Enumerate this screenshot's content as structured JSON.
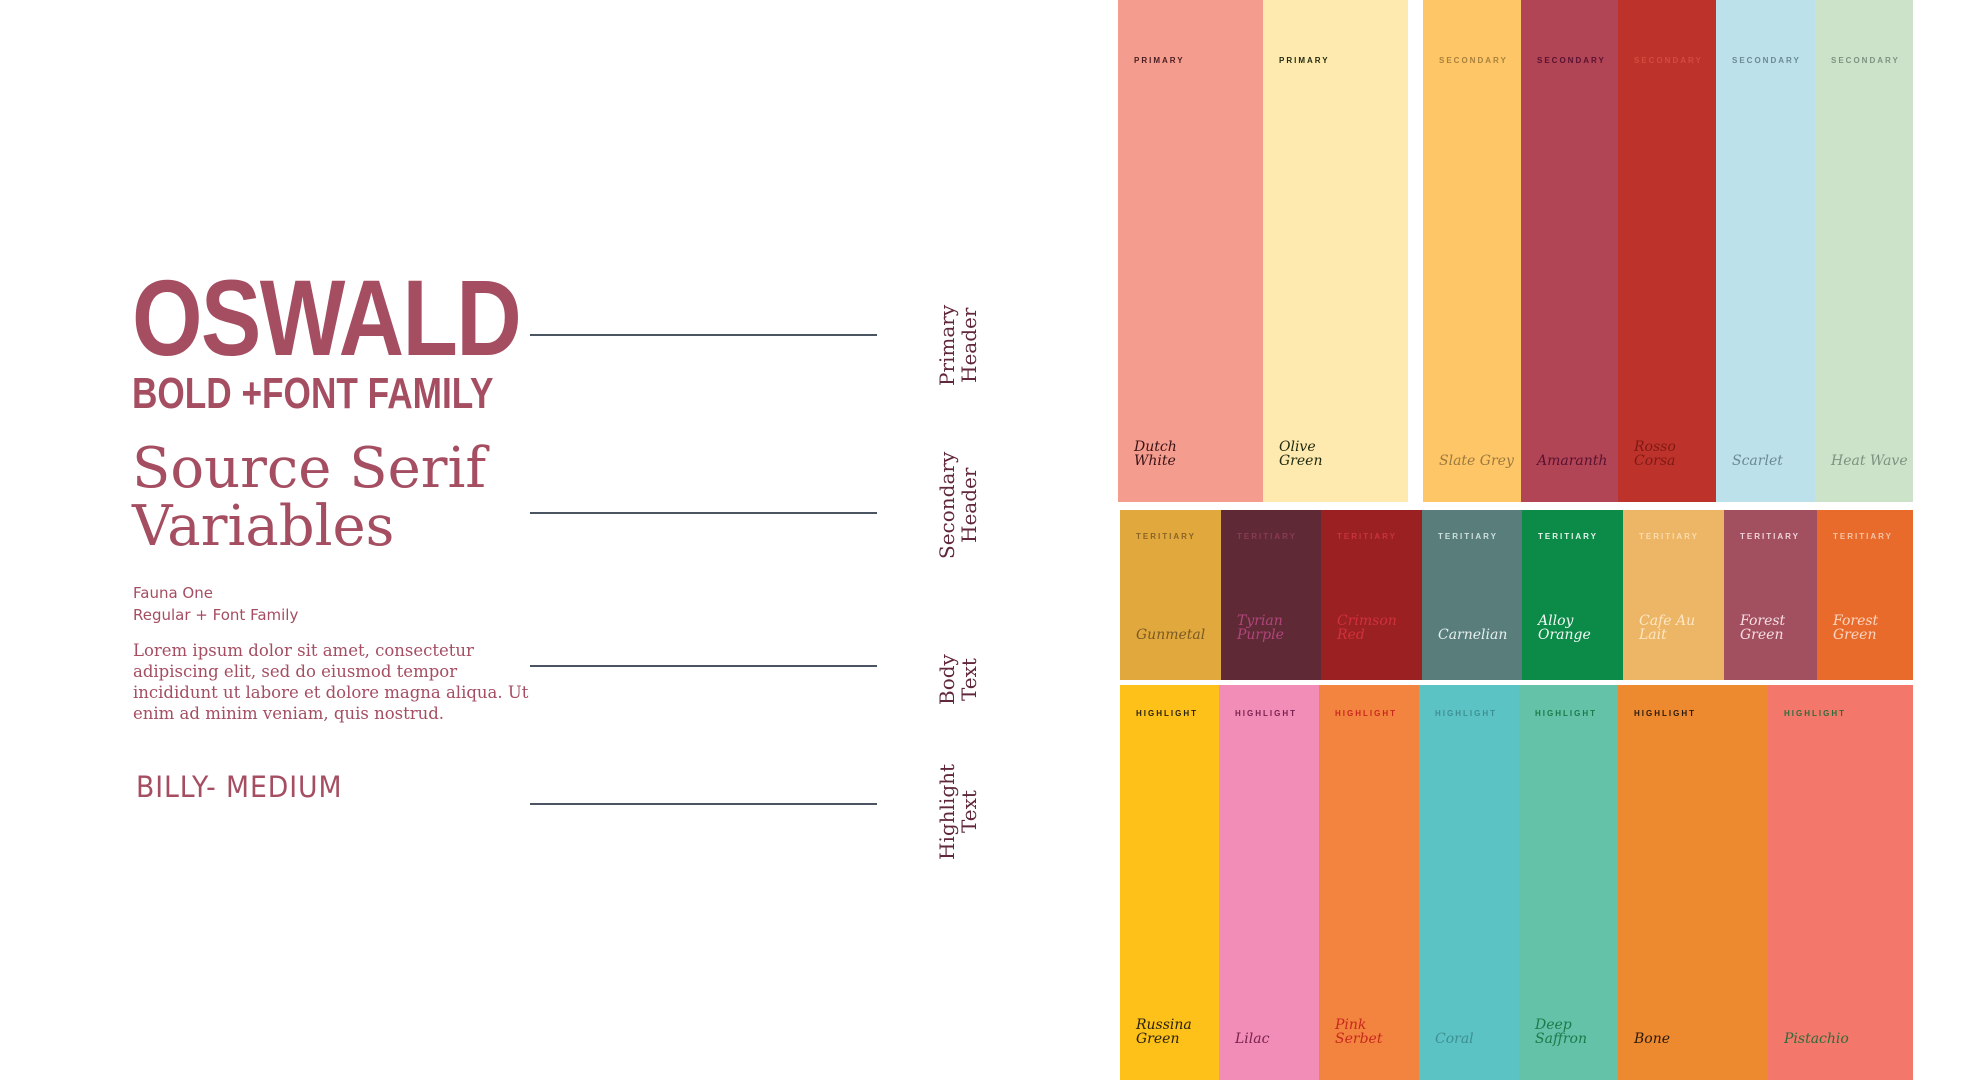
{
  "typography": {
    "oswald_title": "OSWALD",
    "oswald_sub": "BOLD +FONT FAMILY",
    "serif_line1": "Source Serif",
    "serif_line2": "Variables",
    "fauna_line1": "Fauna One",
    "fauna_line2": "Regular + Font Family",
    "lorem": "Lorem ipsum dolor sit amet, consectetur adipiscing elit, sed do eiusmod tempor incididunt ut labore et dolore magna aliqua. Ut enim ad minim veniam, quis nostrud.",
    "billy": "BILLY- MEDIUM"
  },
  "roles": {
    "primary_header": "Primary Header",
    "secondary_header": "Secondary Header",
    "body_text": "Body Text",
    "highlight_text": "Highlight Text"
  },
  "colors": {
    "font_accent": "#a54e62",
    "rule": "#4a5561",
    "role_label": "#60283a"
  },
  "palette": {
    "row1": [
      {
        "tier": "PRIMARY",
        "name": "Dutch White",
        "bg": "#f49c8e",
        "tier_color": "#4a1e22",
        "name_color": "#3a1518"
      },
      {
        "tier": "PRIMARY",
        "name": "Olive Green",
        "bg": "#feeaae",
        "tier_color": "#1f2a10",
        "name_color": "#1f2a10"
      },
      {
        "tier": "SECONDARY",
        "name": "Slate Grey",
        "bg": "#fec666",
        "tier_color": "#a8813c",
        "name_color": "#9c7a3e"
      },
      {
        "tier": "SECONDARY",
        "name": "Amaranth",
        "bg": "#b14455",
        "tier_color": "#5a1230",
        "name_color": "#5a1230"
      },
      {
        "tier": "SECONDARY",
        "name": "Rosso Corsa",
        "bg": "#bd332b",
        "tier_color": "#d64a3e",
        "name_color": "#7e1a14"
      },
      {
        "tier": "SECONDARY",
        "name": "Scarlet",
        "bg": "#bde1ea",
        "tier_color": "#6a8a92",
        "name_color": "#6a8a92"
      },
      {
        "tier": "SECONDARY",
        "name": "Heat Wave",
        "bg": "#cde3c9",
        "tier_color": "#7d9280",
        "name_color": "#7d9280"
      }
    ],
    "row2": [
      {
        "tier": "TERITIARY",
        "name": "Gunmetal",
        "bg": "#e1a83e",
        "tier_color": "#8a6425",
        "name_color": "#7a5a24"
      },
      {
        "tier": "TERITIARY",
        "name": "Tyrian Purple",
        "bg": "#5f2a36",
        "tier_color": "#8a3a55",
        "name_color": "#b0457a"
      },
      {
        "tier": "TERITIARY",
        "name": "Crimson Red",
        "bg": "#9a2022",
        "tier_color": "#c8343a",
        "name_color": "#d0323a"
      },
      {
        "tier": "TERITIARY",
        "name": "Carnelian",
        "bg": "#587d7b",
        "tier_color": "#cfe0df",
        "name_color": "#e6efee"
      },
      {
        "tier": "TERITIARY",
        "name": "Alloy Orange",
        "bg": "#0b8a48",
        "tier_color": "#e6f5ec",
        "name_color": "#f2faf5"
      },
      {
        "tier": "TERITIARY",
        "name": "Cafe Au Lait",
        "bg": "#edb566",
        "tier_color": "#fbdcae",
        "name_color": "#fde7c4"
      },
      {
        "tier": "TERITIARY",
        "name": "Forest Green",
        "bg": "#a24f60",
        "tier_color": "#f0d3da",
        "name_color": "#f5dde3"
      },
      {
        "tier": "TERITIARY",
        "name": "Forest Green",
        "bg": "#e86b2c",
        "tier_color": "#f7c4a6",
        "name_color": "#fbd6c0"
      }
    ],
    "row3": [
      {
        "tier": "HIGHLIGHT",
        "name": "Russina Green",
        "bg": "#fdc11a",
        "tier_color": "#2a2210",
        "name_color": "#2a2210"
      },
      {
        "tier": "HIGHLIGHT",
        "name": "Lilac",
        "bg": "#f18db7",
        "tier_color": "#7a2250",
        "name_color": "#7a2250"
      },
      {
        "tier": "HIGHLIGHT",
        "name": "Pink Serbet",
        "bg": "#f3843f",
        "tier_color": "#c8281e",
        "name_color": "#c8281e"
      },
      {
        "tier": "HIGHLIGHT",
        "name": "Coral",
        "bg": "#5bc3c4",
        "tier_color": "#3f8f92",
        "name_color": "#3f8f92"
      },
      {
        "tier": "HIGHLIGHT",
        "name": "Deep Saffron",
        "bg": "#63c2a8",
        "tier_color": "#1e7a4a",
        "name_color": "#1e7a4a"
      },
      {
        "tier": "HIGHLIGHT",
        "name": "Bone",
        "bg": "#ed8a30",
        "tier_color": "#2a1a0e",
        "name_color": "#2a1a0e"
      },
      {
        "tier": "HIGHLIGHT",
        "name": "Pistachio",
        "bg": "#f4776c",
        "tier_color": "#2f6b3a",
        "name_color": "#2f6b3a"
      }
    ]
  }
}
